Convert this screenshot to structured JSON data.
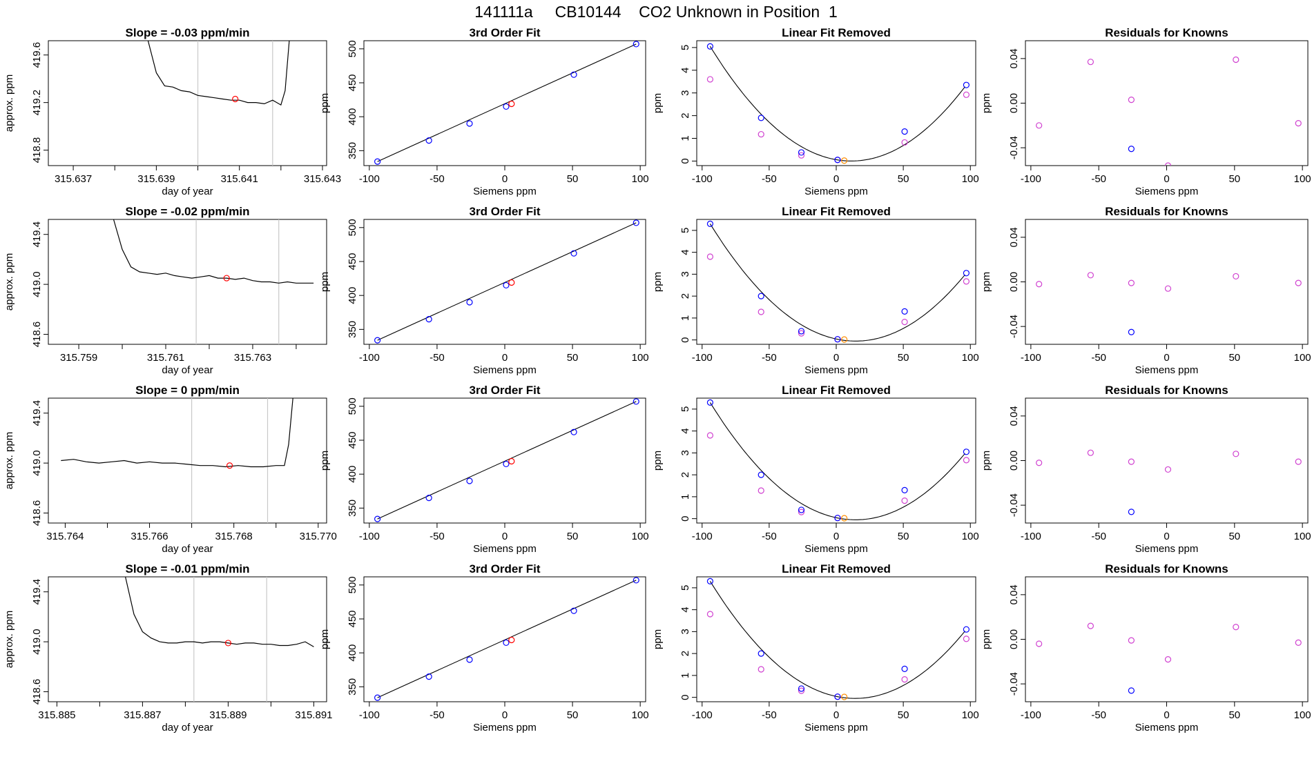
{
  "page_title": "141111a     CB10144    CO2 Unknown in Position  1",
  "colors": {
    "line": "#000000",
    "known_fit": "#0000ff",
    "known_linear": "#d040d0",
    "unknown": "#ff0000",
    "unknown_linear": "#ff8c00",
    "marker_line": "#c8c8c8"
  },
  "chart_data": [
    {
      "type": "line",
      "row": 1,
      "title": "Slope =  -0.03  ppm/min",
      "xlabel": "day of year",
      "ylabel": "approx. ppm",
      "xlim": [
        315.6364,
        315.6431
      ],
      "ylim": [
        418.67,
        419.72
      ],
      "x_tick_values": [
        315.637,
        315.638,
        315.639,
        315.64,
        315.641,
        315.642,
        315.643
      ],
      "x_tick_labels": [
        "315.637",
        "",
        "315.639",
        "",
        "315.641",
        "",
        "315.643"
      ],
      "y_ticks": [
        "418.8",
        "419.2",
        "419.6"
      ],
      "markers": [
        315.64,
        315.6418
      ],
      "series": [
        {
          "x": [
            315.6388,
            315.639,
            315.6392,
            315.6394,
            315.6396,
            315.6398,
            315.64,
            315.6402,
            315.6404,
            315.6406,
            315.6408,
            315.641,
            315.6412,
            315.6414,
            315.6416,
            315.6418,
            315.6419,
            315.642,
            315.6421,
            315.6422
          ],
          "y": [
            419.72,
            419.45,
            419.34,
            419.33,
            419.3,
            419.29,
            419.26,
            419.25,
            419.24,
            419.23,
            419.22,
            419.22,
            419.2,
            419.2,
            419.19,
            419.22,
            419.2,
            419.18,
            419.3,
            419.72
          ]
        }
      ],
      "point": {
        "x": 315.6409,
        "y": 419.23
      }
    },
    {
      "type": "scatter",
      "row": 1,
      "title": "3rd Order Fit",
      "xlabel": "Siemens ppm",
      "ylabel": "ppm",
      "xlim": [
        -104,
        104
      ],
      "ylim": [
        328,
        512
      ],
      "x_ticks": [
        -100,
        -50,
        0,
        50,
        100
      ],
      "y_ticks": [
        350,
        400,
        450,
        500
      ],
      "knowns": {
        "x": [
          -94,
          -56,
          -26,
          1,
          51,
          97
        ],
        "y": [
          334,
          365,
          390,
          415,
          462,
          507
        ]
      },
      "unknown": {
        "x": 5,
        "y": 419
      }
    },
    {
      "type": "scatter",
      "row": 1,
      "title": "Linear Fit Removed",
      "xlabel": "Siemens ppm",
      "ylabel": "ppm",
      "xlim": [
        -104,
        104
      ],
      "ylim": [
        -0.2,
        5.3
      ],
      "x_ticks": [
        -100,
        -50,
        0,
        50,
        100
      ],
      "y_ticks": [
        0,
        1,
        2,
        3,
        4,
        5
      ],
      "knowns_fit": {
        "x": [
          -94,
          -56,
          -26,
          1,
          51,
          97
        ],
        "y": [
          5.05,
          1.9,
          0.38,
          0.05,
          1.3,
          3.35
        ]
      },
      "knowns_linear": {
        "x": [
          -94,
          -56,
          -26,
          1,
          51,
          97
        ],
        "y": [
          3.6,
          1.18,
          0.25,
          0.05,
          0.82,
          2.92
        ]
      },
      "unknown": {
        "x": 6,
        "y": 0.02
      }
    },
    {
      "type": "scatter",
      "row": 1,
      "title": "Residuals for Knowns",
      "xlabel": "Siemens ppm",
      "ylabel": "ppm",
      "xlim": [
        -104,
        104
      ],
      "ylim": [
        -0.056,
        0.056
      ],
      "x_ticks": [
        -100,
        -50,
        0,
        50,
        100
      ],
      "y_tick_values": [
        -0.04,
        0.0,
        0.04
      ],
      "y_ticks": [
        "-0.04",
        "0.00",
        "0.04"
      ],
      "knowns_linear": {
        "x": [
          -94,
          -56,
          -26,
          1,
          51,
          97
        ],
        "y": [
          -0.02,
          0.037,
          0.003,
          -0.056,
          0.039,
          -0.018
        ]
      },
      "knowns_fit": {
        "x": [
          -26
        ],
        "y": [
          -0.041
        ]
      }
    },
    {
      "type": "line",
      "row": 2,
      "title": "Slope =  -0.02  ppm/min",
      "xlabel": "day of year",
      "ylabel": "approx. ppm",
      "xlim": [
        315.7583,
        315.7647
      ],
      "ylim": [
        418.52,
        419.52
      ],
      "x_tick_values": [
        315.759,
        315.76,
        315.761,
        315.762,
        315.763,
        315.764
      ],
      "x_tick_labels": [
        "315.759",
        "",
        "315.761",
        "",
        "315.763",
        ""
      ],
      "y_ticks": [
        "418.6",
        "419.0",
        "419.4"
      ],
      "markers": [
        315.7617,
        315.7636
      ],
      "series": [
        {
          "x": [
            315.7598,
            315.76,
            315.7602,
            315.7604,
            315.7606,
            315.7608,
            315.761,
            315.7612,
            315.7614,
            315.7616,
            315.7618,
            315.762,
            315.7622,
            315.7624,
            315.7626,
            315.7628,
            315.763,
            315.7632,
            315.7634,
            315.7636,
            315.7638,
            315.764,
            315.7642,
            315.7644
          ],
          "y": [
            419.52,
            419.28,
            419.14,
            419.1,
            419.09,
            419.08,
            419.09,
            419.07,
            419.06,
            419.05,
            419.06,
            419.07,
            419.05,
            419.05,
            419.04,
            419.05,
            419.03,
            419.02,
            419.02,
            419.01,
            419.02,
            419.01,
            419.01,
            419.01
          ]
        }
      ],
      "point": {
        "x": 315.7624,
        "y": 419.05
      }
    },
    {
      "type": "scatter",
      "row": 2,
      "title": "3rd Order Fit",
      "xlabel": "Siemens ppm",
      "ylabel": "ppm",
      "xlim": [
        -104,
        104
      ],
      "ylim": [
        328,
        512
      ],
      "x_ticks": [
        -100,
        -50,
        0,
        50,
        100
      ],
      "y_ticks": [
        350,
        400,
        450,
        500
      ],
      "knowns": {
        "x": [
          -94,
          -56,
          -26,
          1,
          51,
          97
        ],
        "y": [
          334,
          365,
          390,
          415,
          462,
          507
        ]
      },
      "unknown": {
        "x": 5,
        "y": 419
      }
    },
    {
      "type": "scatter",
      "row": 2,
      "title": "Linear Fit Removed",
      "xlabel": "Siemens ppm",
      "ylabel": "ppm",
      "xlim": [
        -104,
        104
      ],
      "ylim": [
        -0.2,
        5.5
      ],
      "x_ticks": [
        -100,
        -50,
        0,
        50,
        100
      ],
      "y_ticks": [
        0,
        1,
        2,
        3,
        4,
        5
      ],
      "knowns_fit": {
        "x": [
          -94,
          -56,
          -26,
          1,
          51,
          97
        ],
        "y": [
          5.3,
          2.0,
          0.4,
          0.03,
          1.3,
          3.05
        ]
      },
      "knowns_linear": {
        "x": [
          -94,
          -56,
          -26,
          1,
          51,
          97
        ],
        "y": [
          3.8,
          1.28,
          0.3,
          0.03,
          0.82,
          2.67
        ]
      },
      "unknown": {
        "x": 6,
        "y": 0.02
      }
    },
    {
      "type": "scatter",
      "row": 2,
      "title": "Residuals for Knowns",
      "xlabel": "Siemens ppm",
      "ylabel": "ppm",
      "xlim": [
        -104,
        104
      ],
      "ylim": [
        -0.056,
        0.056
      ],
      "x_ticks": [
        -100,
        -50,
        0,
        50,
        100
      ],
      "y_tick_values": [
        -0.04,
        0.0,
        0.04
      ],
      "y_ticks": [
        "-0.04",
        "0.00",
        "0.04"
      ],
      "knowns_linear": {
        "x": [
          -94,
          -56,
          -26,
          1,
          51,
          97
        ],
        "y": [
          -0.002,
          0.006,
          -0.001,
          -0.006,
          0.005,
          -0.001
        ]
      },
      "knowns_fit": {
        "x": [
          -26
        ],
        "y": [
          -0.045
        ]
      }
    },
    {
      "type": "line",
      "row": 3,
      "title": "Slope =  0  ppm/min",
      "xlabel": "day of year",
      "ylabel": "approx. ppm",
      "xlim": [
        315.7636,
        315.7702
      ],
      "ylim": [
        418.52,
        419.52
      ],
      "x_tick_values": [
        315.764,
        315.765,
        315.766,
        315.767,
        315.768,
        315.769,
        315.77
      ],
      "x_tick_labels": [
        "315.764",
        "",
        "315.766",
        "",
        "315.768",
        "",
        "315.770"
      ],
      "y_ticks": [
        "418.6",
        "419.0",
        "419.4"
      ],
      "markers": [
        315.767,
        315.7688
      ],
      "series": [
        {
          "x": [
            315.7639,
            315.7642,
            315.7645,
            315.7648,
            315.7651,
            315.7654,
            315.7657,
            315.766,
            315.7663,
            315.7666,
            315.7669,
            315.7672,
            315.7675,
            315.7678,
            315.7681,
            315.7684,
            315.7687,
            315.769,
            315.7692,
            315.7693,
            315.7694
          ],
          "y": [
            419.02,
            419.03,
            419.01,
            419.0,
            419.01,
            419.02,
            419.0,
            419.01,
            419.0,
            419.0,
            418.99,
            418.98,
            418.98,
            418.97,
            418.98,
            418.97,
            418.97,
            418.98,
            418.98,
            419.15,
            419.52
          ]
        }
      ],
      "point": {
        "x": 315.7679,
        "y": 418.98
      }
    },
    {
      "type": "scatter",
      "row": 3,
      "title": "3rd Order Fit",
      "xlabel": "Siemens ppm",
      "ylabel": "ppm",
      "xlim": [
        -104,
        104
      ],
      "ylim": [
        328,
        512
      ],
      "x_ticks": [
        -100,
        -50,
        0,
        50,
        100
      ],
      "y_ticks": [
        350,
        400,
        450,
        500
      ],
      "knowns": {
        "x": [
          -94,
          -56,
          -26,
          1,
          51,
          97
        ],
        "y": [
          334,
          365,
          390,
          415,
          462,
          507
        ]
      },
      "unknown": {
        "x": 5,
        "y": 419
      }
    },
    {
      "type": "scatter",
      "row": 3,
      "title": "Linear Fit Removed",
      "xlabel": "Siemens ppm",
      "ylabel": "ppm",
      "xlim": [
        -104,
        104
      ],
      "ylim": [
        -0.2,
        5.5
      ],
      "x_ticks": [
        -100,
        -50,
        0,
        50,
        100
      ],
      "y_ticks": [
        0,
        1,
        2,
        3,
        4,
        5
      ],
      "knowns_fit": {
        "x": [
          -94,
          -56,
          -26,
          1,
          51,
          97
        ],
        "y": [
          5.3,
          2.0,
          0.4,
          0.03,
          1.3,
          3.05
        ]
      },
      "knowns_linear": {
        "x": [
          -94,
          -56,
          -26,
          1,
          51,
          97
        ],
        "y": [
          3.8,
          1.28,
          0.3,
          0.03,
          0.82,
          2.67
        ]
      },
      "unknown": {
        "x": 6,
        "y": 0.02
      }
    },
    {
      "type": "scatter",
      "row": 3,
      "title": "Residuals for Knowns",
      "xlabel": "Siemens ppm",
      "ylabel": "ppm",
      "xlim": [
        -104,
        104
      ],
      "ylim": [
        -0.056,
        0.056
      ],
      "x_ticks": [
        -100,
        -50,
        0,
        50,
        100
      ],
      "y_tick_values": [
        -0.04,
        0.0,
        0.04
      ],
      "y_ticks": [
        "-0.04",
        "0.00",
        "0.04"
      ],
      "knowns_linear": {
        "x": [
          -94,
          -56,
          -26,
          1,
          51,
          97
        ],
        "y": [
          -0.002,
          0.007,
          -0.001,
          -0.008,
          0.006,
          -0.001
        ]
      },
      "knowns_fit": {
        "x": [
          -26
        ],
        "y": [
          -0.046
        ]
      }
    },
    {
      "type": "line",
      "row": 4,
      "title": "Slope =  -0.01  ppm/min",
      "xlabel": "day of year",
      "ylabel": "approx. ppm",
      "xlim": [
        315.8848,
        315.8913
      ],
      "ylim": [
        418.52,
        419.52
      ],
      "x_tick_values": [
        315.885,
        315.886,
        315.887,
        315.888,
        315.889,
        315.89,
        315.891
      ],
      "x_tick_labels": [
        "315.885",
        "",
        "315.887",
        "",
        "315.889",
        "",
        "315.891"
      ],
      "y_ticks": [
        "418.6",
        "419.0",
        "419.4"
      ],
      "markers": [
        315.8882,
        315.8899
      ],
      "series": [
        {
          "x": [
            315.8866,
            315.8868,
            315.887,
            315.8872,
            315.8874,
            315.8876,
            315.8878,
            315.888,
            315.8882,
            315.8884,
            315.8886,
            315.8888,
            315.889,
            315.8892,
            315.8894,
            315.8896,
            315.8898,
            315.89,
            315.8902,
            315.8904,
            315.8906,
            315.8908,
            315.891
          ],
          "y": [
            419.52,
            419.22,
            419.08,
            419.03,
            419.0,
            418.99,
            418.99,
            419.0,
            419.0,
            418.99,
            419.0,
            419.0,
            418.99,
            418.98,
            418.99,
            418.99,
            418.98,
            418.98,
            418.97,
            418.97,
            418.98,
            419.0,
            418.96
          ]
        }
      ],
      "point": {
        "x": 315.889,
        "y": 418.99
      }
    },
    {
      "type": "scatter",
      "row": 4,
      "title": "3rd Order Fit",
      "xlabel": "Siemens ppm",
      "ylabel": "ppm",
      "xlim": [
        -104,
        104
      ],
      "ylim": [
        328,
        512
      ],
      "x_ticks": [
        -100,
        -50,
        0,
        50,
        100
      ],
      "y_ticks": [
        350,
        400,
        450,
        500
      ],
      "knowns": {
        "x": [
          -94,
          -56,
          -26,
          1,
          51,
          97
        ],
        "y": [
          334,
          365,
          390,
          415,
          462,
          507
        ]
      },
      "unknown": {
        "x": 5,
        "y": 419
      }
    },
    {
      "type": "scatter",
      "row": 4,
      "title": "Linear Fit Removed",
      "xlabel": "Siemens ppm",
      "ylabel": "ppm",
      "xlim": [
        -104,
        104
      ],
      "ylim": [
        -0.2,
        5.5
      ],
      "x_ticks": [
        -100,
        -50,
        0,
        50,
        100
      ],
      "y_ticks": [
        0,
        1,
        2,
        3,
        4,
        5
      ],
      "knowns_fit": {
        "x": [
          -94,
          -56,
          -26,
          1,
          51,
          97
        ],
        "y": [
          5.3,
          2.0,
          0.4,
          0.03,
          1.3,
          3.1
        ]
      },
      "knowns_linear": {
        "x": [
          -94,
          -56,
          -26,
          1,
          51,
          97
        ],
        "y": [
          3.8,
          1.28,
          0.3,
          0.03,
          0.82,
          2.67
        ]
      },
      "unknown": {
        "x": 6,
        "y": 0.02
      }
    },
    {
      "type": "scatter",
      "row": 4,
      "title": "Residuals for Knowns",
      "xlabel": "Siemens ppm",
      "ylabel": "ppm",
      "xlim": [
        -104,
        104
      ],
      "ylim": [
        -0.056,
        0.056
      ],
      "x_ticks": [
        -100,
        -50,
        0,
        50,
        100
      ],
      "y_tick_values": [
        -0.04,
        0.0,
        0.04
      ],
      "y_ticks": [
        "-0.04",
        "0.00",
        "0.04"
      ],
      "knowns_linear": {
        "x": [
          -94,
          -56,
          -26,
          1,
          51,
          97
        ],
        "y": [
          -0.004,
          0.012,
          -0.001,
          -0.018,
          0.011,
          -0.003
        ]
      },
      "knowns_fit": {
        "x": [
          -26
        ],
        "y": [
          -0.046
        ]
      }
    }
  ]
}
